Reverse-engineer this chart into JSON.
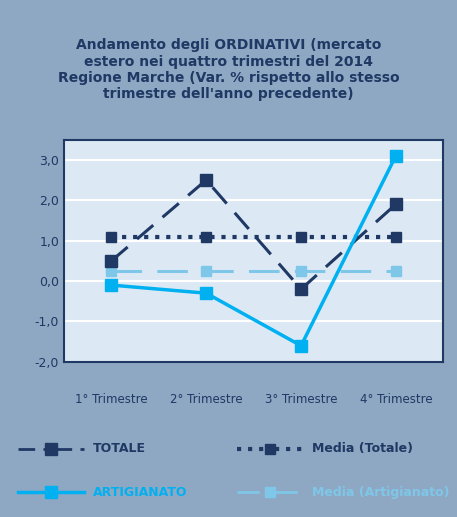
{
  "title_line1": "Andamento degli ORDINATIVI (mercato",
  "title_line2": "estero nei quattro trimestri del 2014",
  "title_line3": "Regione Marche (Var. % rispetto allo stesso",
  "title_line4": "trimestre dell'anno precedente)",
  "x_labels": [
    "1° Trimestre",
    "2° Trimestre",
    "3° Trimestre",
    "4° Trimestre"
  ],
  "x_values": [
    1,
    2,
    3,
    4
  ],
  "totale": [
    0.5,
    2.5,
    -0.2,
    1.9
  ],
  "media_totale": [
    1.1,
    1.1,
    1.1,
    1.1
  ],
  "artigianato": [
    -0.1,
    -0.3,
    -1.6,
    3.1
  ],
  "media_artigianato": [
    0.25,
    0.25,
    0.25,
    0.25
  ],
  "ylim_min": -2.0,
  "ylim_max": 3.5,
  "yticks": [
    -2.0,
    -1.0,
    0.0,
    1.0,
    2.0,
    3.0
  ],
  "ytick_labels": [
    "-2,0",
    "-1,0",
    "0,0",
    "1,0",
    "2,0",
    "3,0"
  ],
  "title_color": "#1F3864",
  "outer_bg_color": "#8EA8C3",
  "plot_bg_color": "#DCE9F5",
  "plot_border_color": "#1F3864",
  "totale_color": "#1F3864",
  "artigianato_color": "#00B0F0",
  "media_totale_color": "#1F3864",
  "media_artigianato_color": "#7FC7E8",
  "grid_color": "#FFFFFF",
  "tick_label_color": "#1F3864",
  "legend_totale": "TOTALE",
  "legend_artigianato": "ARTIGIANATO",
  "legend_media_totale": "Media (Totale)",
  "legend_media_artigianato": "Media (Artigianato)"
}
